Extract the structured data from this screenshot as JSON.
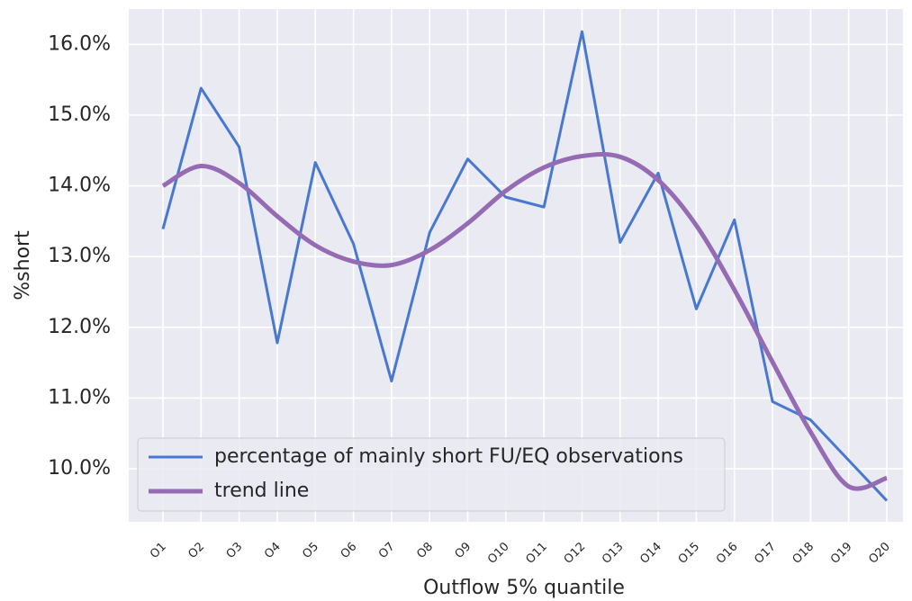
{
  "chart_data": {
    "type": "line",
    "xlabel": "Outflow 5% quantile",
    "ylabel": "%short",
    "categories": [
      "O1",
      "O2",
      "O3",
      "O4",
      "O5",
      "O6",
      "O7",
      "O8",
      "O9",
      "O10",
      "O11",
      "O12",
      "O13",
      "O14",
      "O15",
      "O16",
      "O17",
      "O18",
      "O19",
      "O20"
    ],
    "series": [
      {
        "name": "percentage of mainly short FU/EQ observations",
        "color": "#4878d0",
        "smooth": false,
        "values": [
          13.39,
          15.38,
          14.55,
          11.78,
          14.33,
          13.18,
          11.24,
          13.34,
          14.38,
          13.84,
          13.7,
          16.18,
          13.2,
          14.18,
          12.26,
          13.52,
          10.95,
          10.69,
          10.12,
          9.55
        ]
      },
      {
        "name": "trend line",
        "color": "#956cb4",
        "smooth": true,
        "values": [
          14.0,
          14.28,
          14.04,
          13.57,
          13.16,
          12.93,
          12.88,
          13.09,
          13.47,
          13.93,
          14.26,
          14.42,
          14.41,
          14.08,
          13.44,
          12.53,
          11.51,
          10.52,
          9.75,
          9.87
        ]
      }
    ],
    "ylim": [
      9.25,
      16.5
    ],
    "yticks": [
      {
        "value": 10,
        "label": "10.0%"
      },
      {
        "value": 11,
        "label": "11.0%"
      },
      {
        "value": 12,
        "label": "12.0%"
      },
      {
        "value": 13,
        "label": "13.0%"
      },
      {
        "value": 14,
        "label": "14.0%"
      },
      {
        "value": 15,
        "label": "15.0%"
      },
      {
        "value": 16,
        "label": "16.0%"
      }
    ],
    "grid": true,
    "legend": "lower left"
  }
}
